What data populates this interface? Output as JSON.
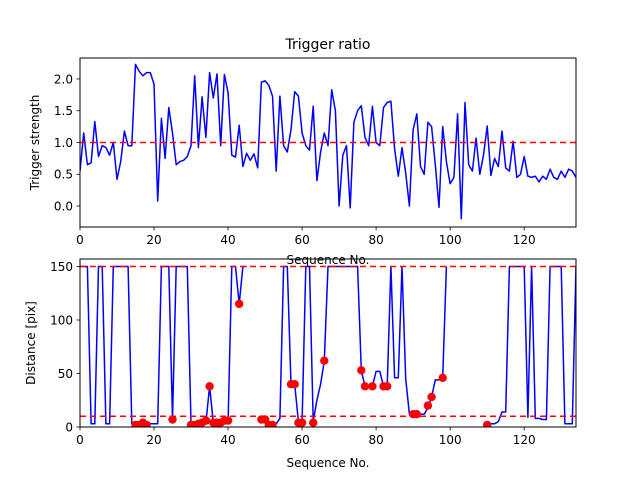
{
  "figure": {
    "background": "#ffffff",
    "line_color": "#0000ff",
    "threshold_color": "#ff0000",
    "marker_color": "#ff0000"
  },
  "chart_data": [
    {
      "type": "line",
      "title": "Trigger ratio",
      "xlabel": "Sequence No.",
      "ylabel": "Trigger strength",
      "xlim": [
        0,
        134
      ],
      "ylim": [
        -0.33,
        2.33
      ],
      "xticks": [
        0,
        20,
        40,
        60,
        80,
        100,
        120
      ],
      "yticks": [
        0.0,
        0.5,
        1.0,
        1.5,
        2.0
      ],
      "ytick_labels": [
        "0.0",
        "0.5",
        "1.0",
        "1.5",
        "2.0"
      ],
      "threshold": {
        "y": 1.0,
        "style": "dashed"
      },
      "grid": false,
      "series": [
        {
          "x": [
            0,
            1,
            2,
            3,
            4,
            5,
            6,
            7,
            8,
            9,
            10,
            11,
            12,
            13,
            14,
            15,
            16,
            17,
            18,
            19,
            20,
            21,
            22,
            23,
            24,
            25,
            26,
            27,
            28,
            29,
            30,
            31,
            32,
            33,
            34,
            35,
            36,
            37,
            38,
            39,
            40,
            41,
            42,
            43,
            44,
            45,
            46,
            47,
            48,
            49,
            50,
            51,
            52,
            53,
            54,
            55,
            56,
            57,
            58,
            59,
            60,
            61,
            62,
            63,
            64,
            65,
            66,
            67,
            68,
            69,
            70,
            71,
            72,
            73,
            74,
            75,
            76,
            77,
            78,
            79,
            80,
            81,
            82,
            83,
            84,
            85,
            86,
            87,
            88,
            89,
            90,
            91,
            92,
            93,
            94,
            95,
            96,
            97,
            98,
            99,
            100,
            101,
            102,
            103,
            104,
            105,
            106,
            107,
            108,
            109,
            110,
            111,
            112,
            113,
            114,
            115,
            116,
            117,
            118,
            119,
            120,
            121,
            122,
            123,
            124,
            125,
            126,
            127,
            128,
            129,
            130,
            131,
            132,
            133,
            134
          ],
          "y": [
            0.55,
            1.15,
            0.65,
            0.68,
            1.33,
            0.78,
            0.95,
            0.92,
            0.8,
            1.0,
            0.42,
            0.7,
            1.18,
            0.95,
            0.95,
            2.23,
            2.12,
            2.05,
            2.1,
            2.1,
            1.92,
            0.08,
            1.38,
            0.75,
            1.55,
            1.15,
            0.65,
            0.7,
            0.72,
            0.78,
            0.95,
            2.05,
            0.92,
            1.72,
            1.08,
            2.1,
            1.7,
            2.08,
            0.95,
            2.07,
            1.78,
            0.8,
            0.77,
            1.27,
            0.62,
            0.83,
            0.72,
            0.82,
            0.6,
            1.95,
            1.97,
            1.9,
            1.73,
            0.55,
            1.73,
            0.95,
            0.85,
            1.2,
            1.8,
            1.73,
            1.15,
            0.95,
            0.88,
            1.57,
            0.4,
            0.85,
            1.15,
            0.95,
            1.83,
            1.5,
            0.0,
            0.8,
            0.95,
            -0.03,
            1.32,
            1.5,
            1.58,
            1.08,
            0.95,
            1.57,
            1.0,
            0.95,
            1.55,
            1.63,
            1.65,
            0.9,
            0.47,
            0.92,
            0.52,
            0.0,
            1.2,
            1.45,
            0.62,
            0.5,
            1.32,
            1.25,
            0.65,
            -0.02,
            1.25,
            0.7,
            0.35,
            0.45,
            1.45,
            -0.2,
            1.63,
            0.65,
            0.55,
            1.07,
            0.5,
            0.8,
            1.26,
            0.48,
            0.75,
            0.62,
            1.18,
            0.6,
            0.55,
            1.02,
            0.45,
            0.5,
            0.78,
            0.47,
            0.45,
            0.47,
            0.38,
            0.47,
            0.42,
            0.58,
            0.45,
            0.42,
            0.55,
            0.45,
            0.58,
            0.55,
            0.45
          ]
        }
      ]
    },
    {
      "type": "line",
      "title": "",
      "xlabel": "Sequence No.",
      "ylabel": "Distance [pix]",
      "xlim": [
        0,
        134
      ],
      "ylim": [
        0,
        157
      ],
      "xticks": [
        0,
        20,
        40,
        60,
        80,
        100,
        120
      ],
      "yticks": [
        0,
        50,
        100,
        150
      ],
      "ytick_labels": [
        "0",
        "50",
        "100",
        "150"
      ],
      "thresholds": [
        {
          "y": 150,
          "style": "dashed"
        },
        {
          "y": 10,
          "style": "dashed"
        }
      ],
      "grid": false,
      "series": [
        {
          "segments": [
            {
              "x": [
                0,
                1,
                2,
                3,
                4,
                5,
                6,
                7,
                8,
                9,
                10,
                11,
                12,
                13,
                14,
                15,
                16,
                17,
                18,
                19,
                20,
                21,
                22,
                23,
                24,
                25,
                26,
                27,
                28,
                29,
                30,
                31,
                32,
                33,
                34,
                35,
                36,
                37,
                38,
                39,
                40,
                41,
                42,
                43,
                44,
                45
              ],
              "y": [
                150,
                150,
                150,
                3,
                3,
                150,
                150,
                3,
                3,
                150,
                150,
                150,
                150,
                150,
                3,
                3,
                3,
                6,
                3,
                3,
                3,
                3,
                150,
                150,
                150,
                8,
                150,
                150,
                150,
                150,
                3,
                3,
                3,
                4,
                4,
                38,
                4,
                4,
                4,
                4,
                5,
                150,
                150,
                115,
                150,
                150
              ]
            },
            {
              "x": [
                48,
                49,
                50,
                51,
                52,
                53,
                54,
                55,
                56,
                57,
                58,
                59,
                60,
                61,
                62,
                63,
                64,
                65,
                66,
                67,
                68,
                69,
                70,
                71,
                72,
                73,
                74,
                75,
                76,
                77,
                78,
                79,
                80,
                81,
                82,
                83,
                84,
                85,
                86,
                87,
                88,
                89,
                90,
                91,
                92,
                93,
                94,
                95,
                96,
                97,
                98,
                99
              ],
              "y": [
                8,
                8,
                8,
                3,
                3,
                3,
                8,
                150,
                150,
                40,
                40,
                5,
                5,
                150,
                150,
                5,
                25,
                40,
                62,
                150,
                150,
                150,
                150,
                150,
                150,
                150,
                150,
                150,
                53,
                38,
                38,
                38,
                52,
                52,
                38,
                38,
                150,
                46,
                46,
                150,
                45,
                12,
                12,
                12,
                12,
                12,
                18,
                28,
                44,
                44,
                46,
                150
              ]
            },
            {
              "x": [
                110,
                111,
                112,
                113,
                114,
                115,
                116,
                117,
                118,
                119,
                120,
                121,
                122,
                123,
                124,
                125,
                126,
                127,
                128,
                129,
                130,
                131,
                132,
                133,
                134
              ],
              "y": [
                3,
                3,
                3,
                5,
                14,
                14,
                150,
                150,
                150,
                150,
                150,
                9,
                150,
                8,
                8,
                7,
                7,
                150,
                150,
                150,
                150,
                3,
                3,
                3,
                150
              ]
            }
          ]
        },
        {
          "type": "scatter",
          "x": [
            15,
            16,
            17,
            18,
            25,
            30,
            31,
            32,
            33,
            34,
            35,
            36,
            37,
            38,
            39,
            40,
            43,
            49,
            50,
            51,
            52,
            57,
            58,
            59,
            60,
            63,
            66,
            76,
            77,
            79,
            82,
            83,
            90,
            91,
            94,
            95,
            98,
            110
          ],
          "y": [
            2,
            2,
            4,
            2,
            7,
            2,
            2,
            3,
            4,
            6,
            38,
            4,
            4,
            4,
            6,
            6,
            115,
            7,
            7,
            2,
            2,
            40,
            40,
            4,
            4,
            4,
            62,
            53,
            38,
            38,
            38,
            38,
            12,
            12,
            20,
            28,
            46,
            2
          ]
        }
      ]
    }
  ]
}
